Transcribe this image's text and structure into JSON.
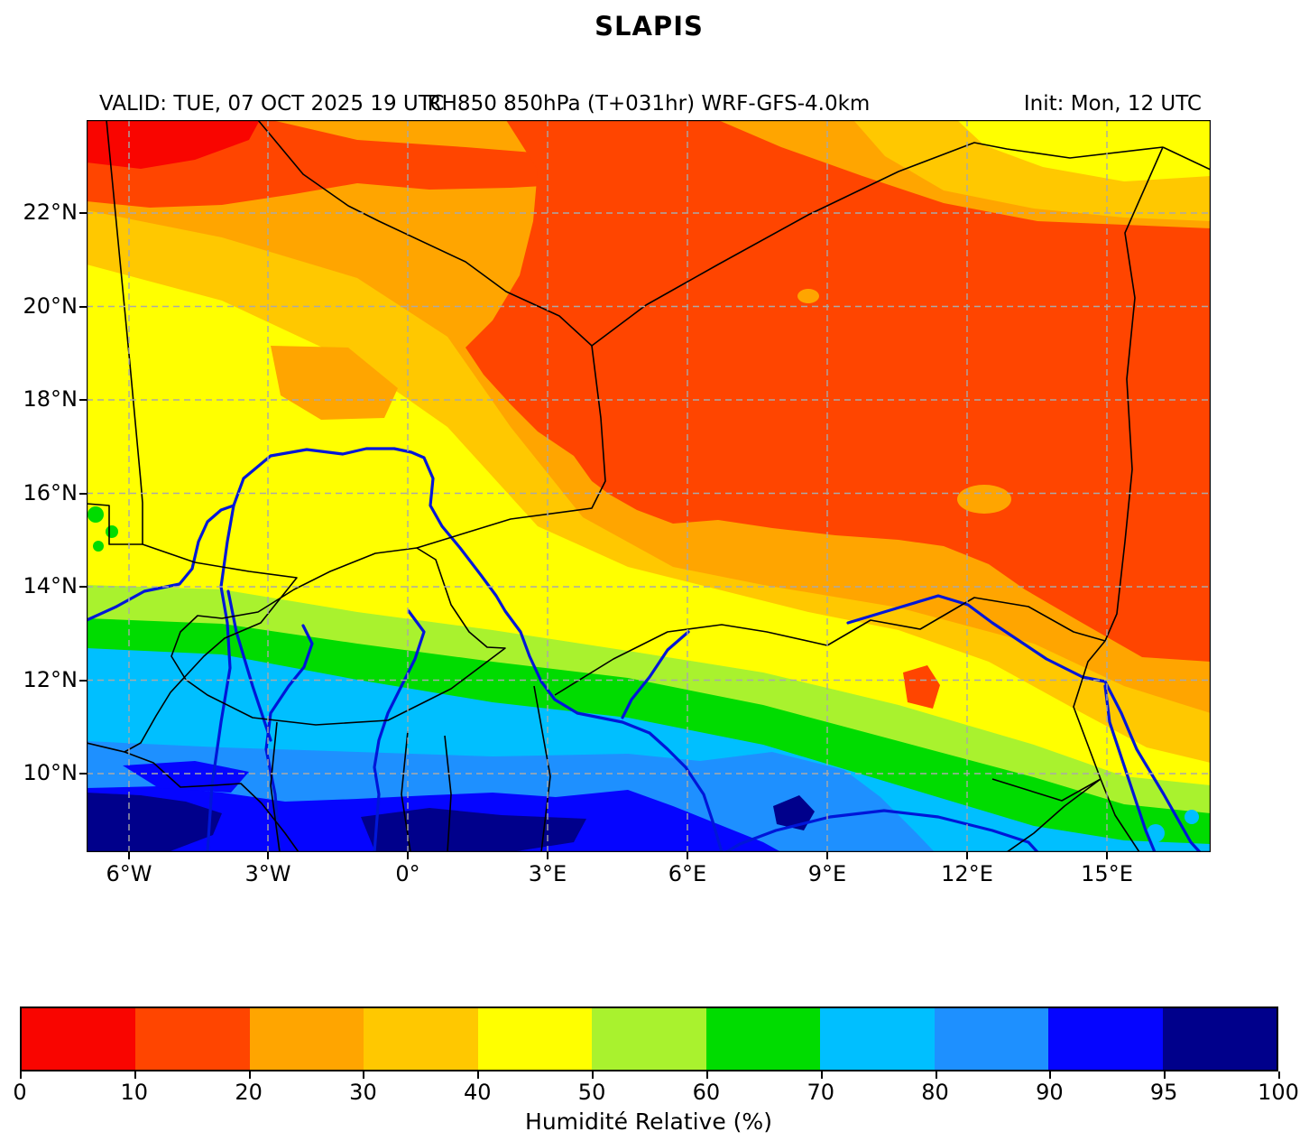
{
  "title": "SLAPIS",
  "header": {
    "valid": "VALID: TUE, 07 OCT 2025 19 UTC",
    "product": "RH850 850hPa (T+031hr) WRF-GFS-4.0km",
    "init": "Init: Mon, 12 UTC"
  },
  "chart_data": {
    "type": "heatmap",
    "title": "SLAPIS",
    "field": "Relative humidity at 850 hPa (%)",
    "model": "WRF-GFS-4.0km",
    "forecast_hour": "T+031hr",
    "valid_time": "TUE, 07 OCT 2025 19 UTC",
    "init_time": "Mon, 12 UTC",
    "x_tick_labels": [
      "6°W",
      "3°W",
      "0°",
      "3°E",
      "6°E",
      "9°E",
      "12°E",
      "15°E"
    ],
    "y_tick_labels": [
      "22°N",
      "20°N",
      "18°N",
      "16°N",
      "14°N",
      "12°N",
      "10°N"
    ],
    "lon_range_deg": [
      -6.9,
      17.2
    ],
    "lat_range_deg": [
      8.3,
      24.0
    ],
    "grid": "dashed gray, 3 deg lon x 2 deg lat",
    "overlays": [
      "country borders (black)",
      "rivers (blue)"
    ],
    "colorbar": {
      "label": "Humidité Relative (%)",
      "tick_labels": [
        "0",
        "10",
        "20",
        "30",
        "40",
        "50",
        "60",
        "70",
        "80",
        "90",
        "95",
        "100"
      ],
      "levels": [
        0,
        10,
        20,
        30,
        40,
        50,
        60,
        70,
        80,
        90,
        95,
        100
      ],
      "colors": [
        "#f90500",
        "#ff4500",
        "#ffa500",
        "#ffc800",
        "#ffff00",
        "#a9f22e",
        "#00dc00",
        "#00bfff",
        "#1e90ff",
        "#0505ff",
        "#00008b"
      ],
      "orientation": "horizontal"
    },
    "field_summary_bands": [
      {
        "lat_band": "23N-24N",
        "rh_pct": "0-20 northwest strip, 20-30 elsewhere, 30-50 far northeast corner"
      },
      {
        "lat_band": "17N-23N",
        "rh_pct": "20-40 west (Mauritania/Mali), 10-20 large dry pool center-east"
      },
      {
        "lat_band": "14N-17N",
        "rh_pct": "30-50 west, 20-30 center, 10-20 far east"
      },
      {
        "lat_band": "13N-14N",
        "rh_pct": "40-50, with 10-20 spot near 11E 12N"
      },
      {
        "lat_band": "12N-13N",
        "rh_pct": "50-60"
      },
      {
        "lat_band": "11N-12N",
        "rh_pct": "60-70"
      },
      {
        "lat_band": "10N-11N",
        "rh_pct": "70-80"
      },
      {
        "lat_band": "9N-10N",
        "rh_pct": "80-90"
      },
      {
        "lat_band": "8.3N-9N",
        "rh_pct": "90-95, patches 95-100 southwest and near 9E"
      }
    ]
  }
}
